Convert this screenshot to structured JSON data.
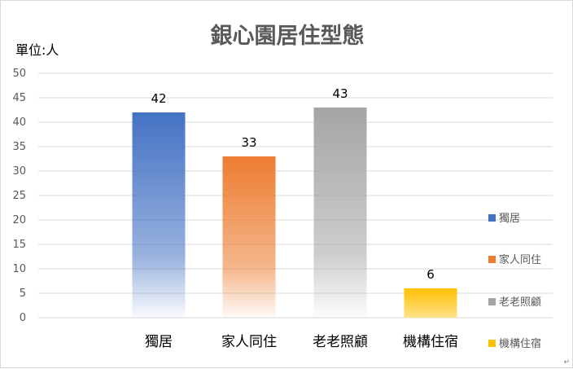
{
  "chart_data": {
    "type": "bar",
    "title": "銀心園居住型態",
    "ylabel": "單位:人",
    "xlabel": "",
    "categories": [
      "獨居",
      "家人同住",
      "老老照顧",
      "機構住宿"
    ],
    "values": [
      42,
      33,
      43,
      6
    ],
    "colors": [
      "#4472c4",
      "#ed7d31",
      "#a5a5a5",
      "#ffc000"
    ],
    "yticks": [
      "0",
      "5",
      "10",
      "15",
      "20",
      "25",
      "30",
      "35",
      "40",
      "45",
      "50"
    ],
    "ylim": [
      0,
      50
    ],
    "grid": true,
    "legend": {
      "position": "right",
      "entries": [
        "獨居",
        "家人同住",
        "老老照顧",
        "機構住宿"
      ]
    },
    "data_labels": [
      "42",
      "33",
      "43",
      "6"
    ]
  },
  "corner_mark": "↵"
}
